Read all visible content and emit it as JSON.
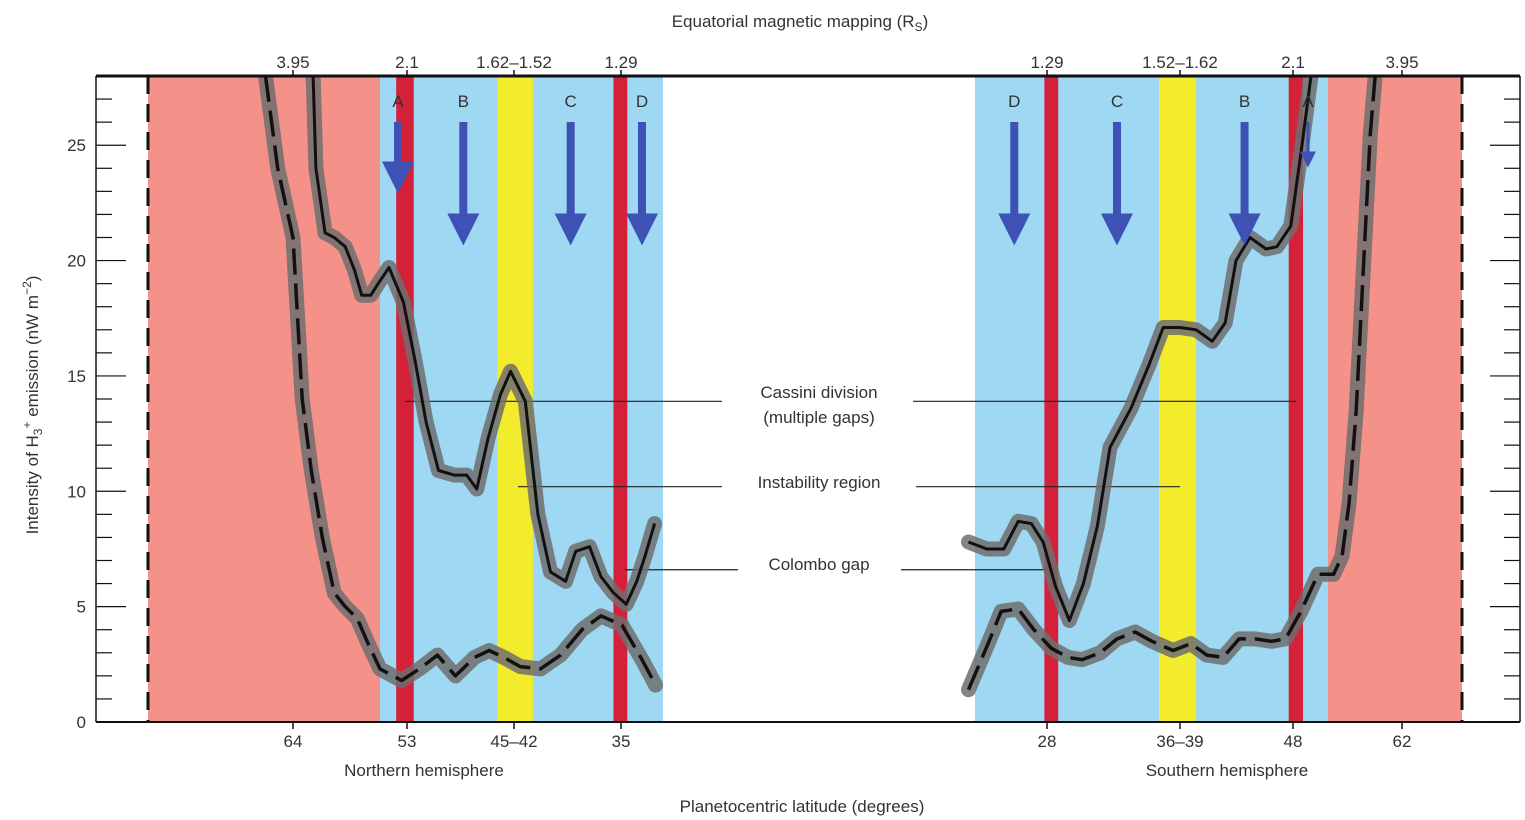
{
  "chart_data": {
    "type": "line",
    "title": "",
    "top_axis_title": "Equatorial magnetic mapping (R",
    "top_axis_title_sub": "S",
    "top_axis_title_end": ")",
    "xlabel": "Planetocentric latitude (degrees)",
    "ylabel": "Intensity of  H",
    "ylabel_sub": "3",
    "ylabel_sup": "+",
    "ylabel_mid": " emission (nW m",
    "ylabel_sup2": "−2",
    "ylabel_end": ")",
    "ylim": [
      0,
      28
    ],
    "y_ticks": [
      0,
      5,
      10,
      15,
      20,
      25
    ],
    "y_tick_labels": [
      "0",
      "5",
      "10",
      "15",
      "20",
      "25"
    ],
    "hemisphere_labels": [
      "Northern hemisphere",
      "Southern hemisphere"
    ],
    "bottom_ticks": [
      {
        "label": "64",
        "lat": 64
      },
      {
        "label": "53",
        "lat": 53
      },
      {
        "label": "45–42",
        "lat": 43.5
      },
      {
        "label": "35",
        "lat": 35
      },
      {
        "label": "28",
        "lat": -28
      },
      {
        "label": "36–39",
        "lat": -37.5
      },
      {
        "label": "48",
        "lat": -48
      },
      {
        "label": "62",
        "lat": -62
      }
    ],
    "top_ticks": [
      {
        "label": "3.95",
        "lat": 64
      },
      {
        "label": "2.1",
        "lat": 53
      },
      {
        "label": "1.62–1.52",
        "lat": 43.5
      },
      {
        "label": "1.29",
        "lat": 35
      },
      {
        "label": "1.29",
        "lat": -28
      },
      {
        "label": "1.52–1.62",
        "lat": -37.5
      },
      {
        "label": "2.1",
        "lat": -48
      },
      {
        "label": "3.95",
        "lat": -62
      }
    ],
    "regions": [
      {
        "hemisphere": "north",
        "type": "outer",
        "from": 73.5,
        "to": 54.5,
        "color": "#f4928a"
      },
      {
        "hemisphere": "north",
        "type": "rings",
        "from": 54.5,
        "to": 31.0,
        "color": "#9ed8f2"
      },
      {
        "hemisphere": "north",
        "type": "instability",
        "from": 45.0,
        "to": 42.0,
        "color": "#f2ec2c"
      },
      {
        "hemisphere": "north",
        "type": "gap",
        "from": 53.6,
        "to": 52.4,
        "color": "#d42038"
      },
      {
        "hemisphere": "north",
        "type": "gap",
        "from": 35.6,
        "to": 34.4,
        "color": "#d42038"
      },
      {
        "hemisphere": "south",
        "type": "rings",
        "from": -22.5,
        "to": -51.5,
        "color": "#9ed8f2"
      },
      {
        "hemisphere": "south",
        "type": "outer",
        "from": -51.5,
        "to": -67.0,
        "color": "#f4928a"
      },
      {
        "hemisphere": "south",
        "type": "instability",
        "from": -36.0,
        "to": -39.0,
        "color": "#f2ec2c"
      },
      {
        "hemisphere": "south",
        "type": "gap",
        "from": -27.8,
        "to": -28.8,
        "color": "#d42038"
      },
      {
        "hemisphere": "south",
        "type": "gap",
        "from": -47.6,
        "to": -49.0,
        "color": "#d42038"
      }
    ],
    "ring_labels": [
      {
        "label": "A",
        "lat": 53.5,
        "len": 5.5
      },
      {
        "label": "B",
        "lat": 48.0,
        "len": 9.5
      },
      {
        "label": "C",
        "lat": 39.0,
        "len": 9.5
      },
      {
        "label": "D",
        "lat": 33.0,
        "len": 9.5
      },
      {
        "label": "D",
        "lat": -25.5,
        "len": 9.5
      },
      {
        "label": "C",
        "lat": -33.0,
        "len": 9.5
      },
      {
        "label": "B",
        "lat": -43.5,
        "len": 9.5
      },
      {
        "label": "A",
        "lat": -49.5,
        "len": 3.5
      }
    ],
    "annotations": [
      {
        "lines": [
          "Cassini division",
          "(multiple gaps)"
        ],
        "y_value": 13.9
      },
      {
        "lines": [
          "Instability region"
        ],
        "y_value": 10.2
      },
      {
        "lines": [
          "Colombo gap"
        ],
        "y_value": 6.6
      }
    ],
    "series": [
      {
        "hemisphere": "north",
        "style": "solid",
        "points": [
          [
            61.8,
            28.0
          ],
          [
            61.5,
            24.0
          ],
          [
            60.5,
            21.2
          ],
          [
            59.5,
            21.0
          ],
          [
            58.3,
            20.6
          ],
          [
            57.3,
            19.6
          ],
          [
            56.5,
            18.5
          ],
          [
            55.5,
            18.5
          ],
          [
            54.7,
            19.0
          ],
          [
            54.0,
            19.7
          ],
          [
            53.2,
            18.2
          ],
          [
            52.3,
            15.7
          ],
          [
            51.3,
            13.0
          ],
          [
            50.2,
            10.9
          ],
          [
            48.8,
            10.7
          ],
          [
            47.7,
            10.7
          ],
          [
            46.8,
            10.1
          ],
          [
            45.8,
            12.3
          ],
          [
            44.7,
            14.2
          ],
          [
            43.8,
            15.2
          ],
          [
            42.6,
            13.9
          ],
          [
            41.6,
            9.0
          ],
          [
            40.6,
            6.5
          ],
          [
            39.4,
            6.1
          ],
          [
            38.6,
            7.4
          ],
          [
            37.5,
            7.6
          ],
          [
            36.6,
            6.3
          ],
          [
            35.6,
            5.6
          ],
          [
            34.5,
            5.1
          ],
          [
            33.5,
            6.1
          ],
          [
            32.7,
            7.2
          ],
          [
            31.8,
            8.6
          ]
        ]
      },
      {
        "hemisphere": "north",
        "style": "dashed",
        "points": [
          [
            65.8,
            28.0
          ],
          [
            65.0,
            24.0
          ],
          [
            64.0,
            21.0
          ],
          [
            63.0,
            14.0
          ],
          [
            62.0,
            10.9
          ],
          [
            60.8,
            8.0
          ],
          [
            59.5,
            5.6
          ],
          [
            58.3,
            5.0
          ],
          [
            57.0,
            4.5
          ],
          [
            55.8,
            3.4
          ],
          [
            54.5,
            2.3
          ],
          [
            53.3,
            1.8
          ],
          [
            51.9,
            2.3
          ],
          [
            50.3,
            2.9
          ],
          [
            48.7,
            2.0
          ],
          [
            47.0,
            2.8
          ],
          [
            45.7,
            3.1
          ],
          [
            44.4,
            2.8
          ],
          [
            43.0,
            2.4
          ],
          [
            41.4,
            2.3
          ],
          [
            39.8,
            2.9
          ],
          [
            38.1,
            4.0
          ],
          [
            36.6,
            4.6
          ],
          [
            34.9,
            4.2
          ],
          [
            33.0,
            2.7
          ],
          [
            31.7,
            1.6
          ]
        ]
      },
      {
        "hemisphere": "south",
        "style": "solid",
        "points": [
          [
            -22.0,
            7.8
          ],
          [
            -23.4,
            7.5
          ],
          [
            -24.7,
            7.5
          ],
          [
            -25.8,
            8.7
          ],
          [
            -26.8,
            8.6
          ],
          [
            -27.7,
            7.8
          ],
          [
            -28.6,
            5.9
          ],
          [
            -29.6,
            4.4
          ],
          [
            -30.6,
            6.0
          ],
          [
            -31.6,
            8.5
          ],
          [
            -32.5,
            11.9
          ],
          [
            -34.0,
            13.6
          ],
          [
            -35.3,
            15.5
          ],
          [
            -36.3,
            17.1
          ],
          [
            -37.5,
            17.1
          ],
          [
            -39.0,
            17.0
          ],
          [
            -40.5,
            16.5
          ],
          [
            -41.7,
            17.3
          ],
          [
            -42.7,
            20.0
          ],
          [
            -44.0,
            21.0
          ],
          [
            -45.5,
            20.5
          ],
          [
            -46.5,
            20.6
          ],
          [
            -47.8,
            21.5
          ],
          [
            -48.9,
            25.0
          ],
          [
            -49.8,
            28.0
          ]
        ]
      },
      {
        "hemisphere": "south",
        "style": "dashed",
        "points": [
          [
            -22.0,
            1.4
          ],
          [
            -23.5,
            3.4
          ],
          [
            -24.5,
            4.8
          ],
          [
            -25.8,
            4.9
          ],
          [
            -27.0,
            4.0
          ],
          [
            -28.3,
            3.2
          ],
          [
            -29.5,
            2.8
          ],
          [
            -30.5,
            2.7
          ],
          [
            -31.8,
            3.0
          ],
          [
            -33.0,
            3.6
          ],
          [
            -34.3,
            3.9
          ],
          [
            -35.5,
            3.5
          ],
          [
            -37.0,
            3.1
          ],
          [
            -38.5,
            3.4
          ],
          [
            -40.0,
            2.9
          ],
          [
            -41.5,
            2.8
          ],
          [
            -43.0,
            3.6
          ],
          [
            -44.5,
            3.6
          ],
          [
            -46.0,
            3.5
          ],
          [
            -47.3,
            3.6
          ],
          [
            -48.8,
            4.8
          ],
          [
            -50.5,
            6.4
          ],
          [
            -52.3,
            6.4
          ],
          [
            -53.5,
            7.2
          ],
          [
            -54.5,
            9.5
          ],
          [
            -55.5,
            13.5
          ],
          [
            -56.5,
            19.5
          ],
          [
            -57.5,
            25.5
          ],
          [
            -58.2,
            28.0
          ]
        ]
      }
    ]
  }
}
